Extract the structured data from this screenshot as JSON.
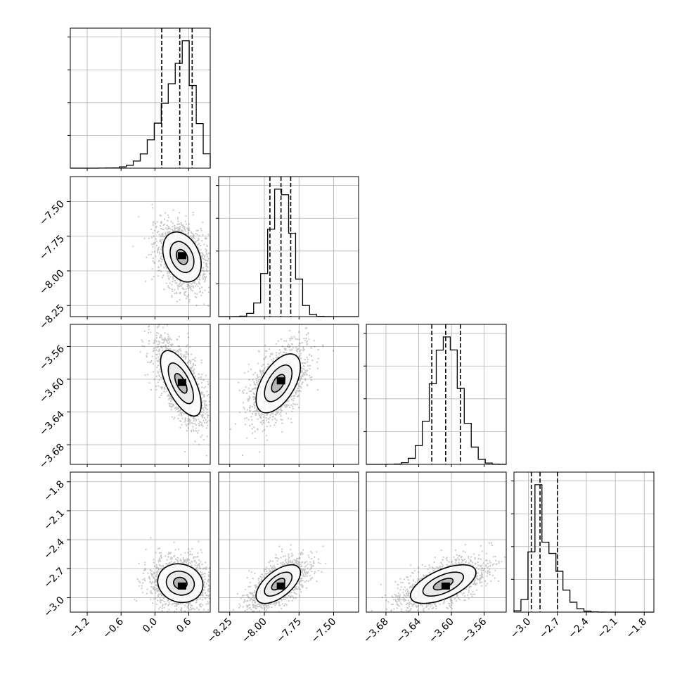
{
  "chart_data": {
    "type": "corner",
    "grid": true,
    "colors": {
      "hist_line": "#000000",
      "contour_line": "#000000",
      "points": "#000000",
      "grid": "#b0b0b0"
    },
    "params": [
      {
        "index": 0,
        "range": [
          -1.5,
          0.98
        ],
        "ticks": [
          -1.2,
          -0.6,
          0.0,
          0.6
        ],
        "tick_labels": [
          "−1.2",
          "−0.6",
          "0.0",
          "0.6"
        ],
        "center": 0.45,
        "sigma": 0.22,
        "skew": -1.0,
        "quantiles": [
          0.12,
          0.44,
          0.66
        ]
      },
      {
        "index": 1,
        "range": [
          -8.33,
          -7.32
        ],
        "ticks": [
          -8.25,
          -8.0,
          -7.75,
          -7.5
        ],
        "tick_labels": [
          "−8.25",
          "−8.00",
          "−7.75",
          "−7.50"
        ],
        "center": -7.88,
        "sigma": 0.08,
        "skew": 0.0,
        "quantiles": [
          -7.96,
          -7.88,
          -7.81
        ]
      },
      {
        "index": 2,
        "range": [
          -3.704,
          -3.533
        ],
        "ticks": [
          -3.68,
          -3.64,
          -3.6,
          -3.56
        ],
        "tick_labels": [
          "−3.68",
          "−3.64",
          "−3.60",
          "−3.56"
        ],
        "center": -3.606,
        "sigma": 0.017,
        "skew": 0.0,
        "quantiles": [
          -3.624,
          -3.607,
          -3.589
        ]
      },
      {
        "index": 3,
        "range": [
          -3.15,
          -1.7
        ],
        "ticks": [
          -3.0,
          -2.7,
          -2.4,
          -2.1,
          -1.8
        ],
        "tick_labels": [
          "−3.0",
          "−2.7",
          "−2.4",
          "−2.1",
          "−1.8"
        ],
        "center": -2.86,
        "sigma": 0.08,
        "skew": 2.0,
        "quantiles": [
          -2.97,
          -2.88,
          -2.7
        ]
      }
    ],
    "pairs": [
      {
        "x": 0,
        "y": 1,
        "cx": 0.48,
        "cy": -7.9,
        "sx": 0.17,
        "sy": 0.09,
        "rho": -0.3,
        "peak": [
          0.48,
          -7.89
        ]
      },
      {
        "x": 0,
        "y": 2,
        "cx": 0.46,
        "cy": -3.605,
        "sx": 0.18,
        "sy": 0.02,
        "rho": -0.65,
        "peak": [
          0.48,
          -3.604
        ]
      },
      {
        "x": 1,
        "y": 2,
        "cx": -7.9,
        "cy": -3.605,
        "sx": 0.08,
        "sy": 0.018,
        "rho": 0.55,
        "peak": [
          -7.88,
          -3.602
        ]
      },
      {
        "x": 0,
        "y": 3,
        "cx": 0.45,
        "cy": -2.85,
        "sx": 0.2,
        "sy": 0.1,
        "rho": -0.1,
        "peak": [
          0.48,
          -2.88
        ]
      },
      {
        "x": 1,
        "y": 3,
        "cx": -7.9,
        "cy": -2.86,
        "sx": 0.08,
        "sy": 0.1,
        "rho": 0.6,
        "peak": [
          -7.88,
          -2.88
        ]
      },
      {
        "x": 2,
        "y": 3,
        "cx": -3.61,
        "cy": -2.86,
        "sx": 0.02,
        "sy": 0.1,
        "rho": 0.6,
        "peak": [
          -3.607,
          -2.88
        ]
      }
    ]
  }
}
